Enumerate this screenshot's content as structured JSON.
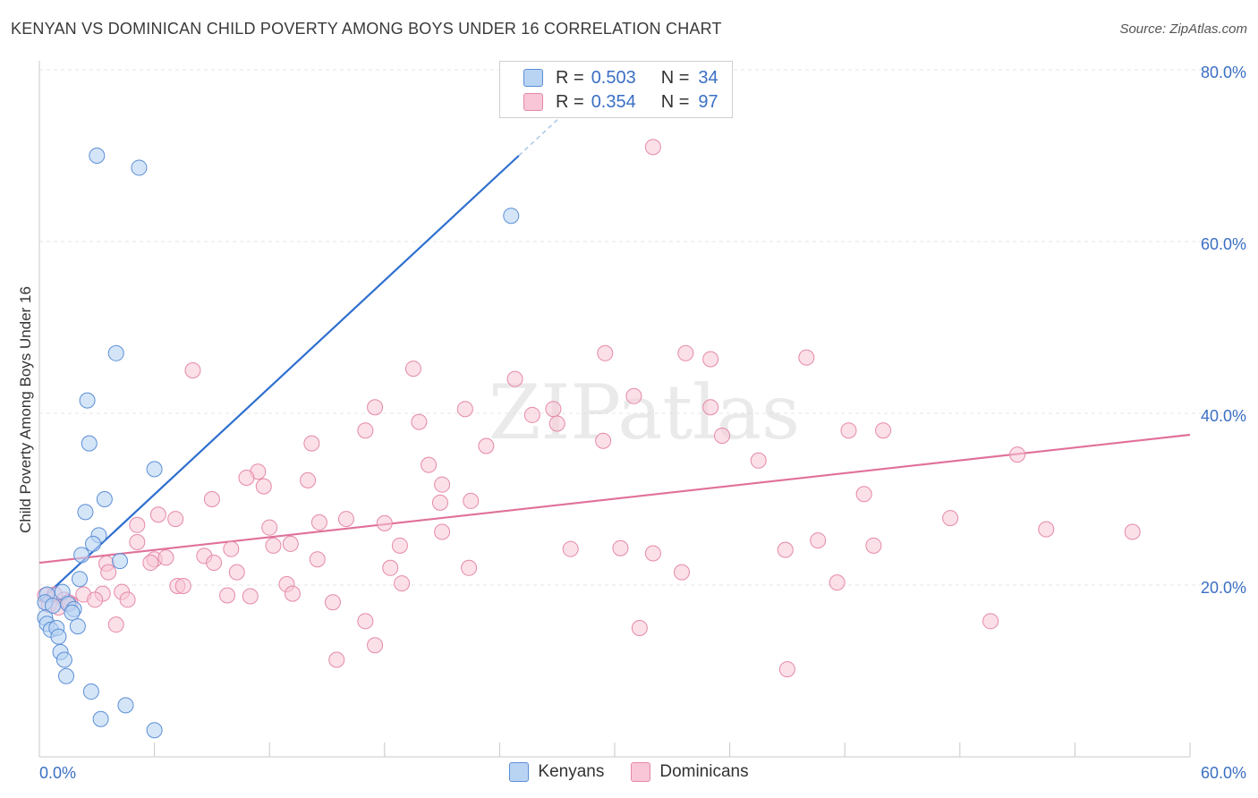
{
  "header": {
    "title": "KENYAN VS DOMINICAN CHILD POVERTY AMONG BOYS UNDER 16 CORRELATION CHART",
    "source": "Source: ZipAtlas.com"
  },
  "watermark": "ZIPatlas",
  "colors": {
    "kenyans_fill": "#b9d3f3",
    "kenyans_stroke": "#5b8fd6",
    "kenyans_line": "#2f6fcf",
    "dominicans_fill": "#f8c6d6",
    "dominicans_stroke": "#e589a8",
    "dominicans_line": "#e0709a",
    "axis_text": "#3a6fc4",
    "grid": "#e4e4e4"
  },
  "legend": {
    "rows": [
      {
        "r_label": "R =",
        "r_value": "0.503",
        "n_label": "N =",
        "n_value": "34"
      },
      {
        "r_label": "R =",
        "r_value": "0.354",
        "n_label": "N =",
        "n_value": "97"
      }
    ]
  },
  "chart_data": {
    "type": "scatter",
    "title": "KENYAN VS DOMINICAN CHILD POVERTY AMONG BOYS UNDER 16 CORRELATION CHART",
    "xlabel": "",
    "ylabel": "Child Poverty Among Boys Under 16",
    "xlim": [
      0,
      60
    ],
    "ylim": [
      0,
      80
    ],
    "x_ticks": [
      0,
      60
    ],
    "x_tick_labels": [
      "0.0%",
      "60.0%"
    ],
    "y_ticks": [
      20,
      40,
      60,
      80
    ],
    "y_tick_labels": [
      "20.0%",
      "40.0%",
      "60.0%",
      "80.0%"
    ],
    "grid": true,
    "legend_position": "top-center",
    "series": [
      {
        "name": "Kenyans",
        "r": 0.503,
        "n": 34,
        "trendline": {
          "x0": 0.0,
          "y0": 18.1,
          "x1": 25.0,
          "y1": 70.0,
          "dashed_to_x": 28.0
        },
        "points": [
          [
            3.0,
            70.0
          ],
          [
            5.2,
            68.6
          ],
          [
            24.6,
            63.0
          ],
          [
            4.0,
            47.0
          ],
          [
            2.5,
            41.5
          ],
          [
            2.6,
            36.5
          ],
          [
            6.0,
            33.5
          ],
          [
            3.4,
            30.0
          ],
          [
            2.4,
            28.5
          ],
          [
            3.1,
            25.8
          ],
          [
            2.8,
            24.8
          ],
          [
            2.2,
            23.5
          ],
          [
            4.2,
            22.8
          ],
          [
            2.1,
            20.7
          ],
          [
            1.2,
            19.2
          ],
          [
            0.4,
            18.9
          ],
          [
            0.3,
            18.0
          ],
          [
            0.7,
            17.6
          ],
          [
            1.5,
            17.8
          ],
          [
            1.8,
            17.2
          ],
          [
            1.7,
            16.8
          ],
          [
            0.3,
            16.2
          ],
          [
            0.4,
            15.5
          ],
          [
            0.6,
            14.8
          ],
          [
            0.9,
            15.0
          ],
          [
            2.0,
            15.2
          ],
          [
            1.0,
            14.0
          ],
          [
            1.1,
            12.2
          ],
          [
            1.3,
            11.3
          ],
          [
            1.4,
            9.4
          ],
          [
            2.7,
            7.6
          ],
          [
            4.5,
            6.0
          ],
          [
            3.2,
            4.4
          ],
          [
            6.0,
            3.1
          ]
        ]
      },
      {
        "name": "Dominicans",
        "r": 0.354,
        "n": 97,
        "trendline": {
          "x0": 0.0,
          "y0": 22.6,
          "x1": 60.0,
          "y1": 37.5
        },
        "points": [
          [
            32.0,
            71.0
          ],
          [
            8.0,
            45.0
          ],
          [
            19.5,
            45.2
          ],
          [
            29.5,
            47.0
          ],
          [
            33.7,
            47.0
          ],
          [
            35.0,
            46.3
          ],
          [
            40.0,
            46.5
          ],
          [
            24.8,
            44.0
          ],
          [
            31.0,
            42.0
          ],
          [
            17.5,
            40.7
          ],
          [
            22.2,
            40.5
          ],
          [
            35.0,
            40.7
          ],
          [
            26.8,
            40.5
          ],
          [
            25.7,
            39.8
          ],
          [
            19.8,
            39.0
          ],
          [
            27.0,
            38.8
          ],
          [
            17.0,
            38.0
          ],
          [
            35.6,
            37.4
          ],
          [
            42.2,
            38.0
          ],
          [
            44.0,
            38.0
          ],
          [
            14.2,
            36.5
          ],
          [
            23.3,
            36.2
          ],
          [
            29.4,
            36.8
          ],
          [
            51.0,
            35.2
          ],
          [
            37.5,
            34.5
          ],
          [
            20.3,
            34.0
          ],
          [
            11.4,
            33.2
          ],
          [
            10.8,
            32.5
          ],
          [
            14.0,
            32.2
          ],
          [
            11.7,
            31.5
          ],
          [
            21.0,
            31.7
          ],
          [
            9.0,
            30.0
          ],
          [
            22.5,
            29.8
          ],
          [
            20.9,
            29.6
          ],
          [
            43.0,
            30.6
          ],
          [
            6.2,
            28.2
          ],
          [
            7.1,
            27.7
          ],
          [
            16.0,
            27.7
          ],
          [
            18.0,
            27.2
          ],
          [
            14.6,
            27.3
          ],
          [
            12.0,
            26.7
          ],
          [
            5.1,
            27.0
          ],
          [
            47.5,
            27.8
          ],
          [
            21.0,
            26.2
          ],
          [
            52.5,
            26.5
          ],
          [
            57.0,
            26.2
          ],
          [
            5.1,
            25.0
          ],
          [
            13.1,
            24.8
          ],
          [
            12.2,
            24.6
          ],
          [
            18.8,
            24.6
          ],
          [
            40.6,
            25.2
          ],
          [
            43.5,
            24.6
          ],
          [
            10.0,
            24.2
          ],
          [
            27.7,
            24.2
          ],
          [
            30.3,
            24.3
          ],
          [
            38.9,
            24.1
          ],
          [
            3.5,
            22.5
          ],
          [
            6.0,
            23.0
          ],
          [
            6.6,
            23.2
          ],
          [
            8.6,
            23.4
          ],
          [
            14.5,
            23.0
          ],
          [
            32.0,
            23.7
          ],
          [
            5.8,
            22.6
          ],
          [
            9.1,
            22.6
          ],
          [
            18.3,
            22.0
          ],
          [
            22.4,
            22.0
          ],
          [
            3.6,
            21.5
          ],
          [
            10.3,
            21.5
          ],
          [
            33.5,
            21.5
          ],
          [
            7.2,
            19.9
          ],
          [
            7.5,
            19.9
          ],
          [
            12.9,
            20.1
          ],
          [
            18.9,
            20.2
          ],
          [
            41.6,
            20.3
          ],
          [
            0.3,
            18.8
          ],
          [
            0.8,
            18.9
          ],
          [
            1.3,
            18.3
          ],
          [
            2.3,
            18.9
          ],
          [
            3.3,
            19.0
          ],
          [
            4.3,
            19.2
          ],
          [
            9.8,
            18.8
          ],
          [
            11.0,
            18.7
          ],
          [
            13.2,
            19.0
          ],
          [
            15.3,
            18.0
          ],
          [
            0.5,
            17.7
          ],
          [
            1.0,
            17.4
          ],
          [
            1.6,
            17.9
          ],
          [
            2.9,
            18.3
          ],
          [
            4.6,
            18.3
          ],
          [
            17.0,
            15.8
          ],
          [
            31.3,
            15.0
          ],
          [
            49.6,
            15.8
          ],
          [
            4.0,
            15.4
          ],
          [
            17.5,
            13.0
          ],
          [
            15.5,
            11.3
          ],
          [
            39.0,
            10.2
          ],
          [
            1.5,
            18.0
          ]
        ]
      }
    ]
  },
  "bottom_legend": {
    "items": [
      {
        "label": "Kenyans"
      },
      {
        "label": "Dominicans"
      }
    ]
  }
}
